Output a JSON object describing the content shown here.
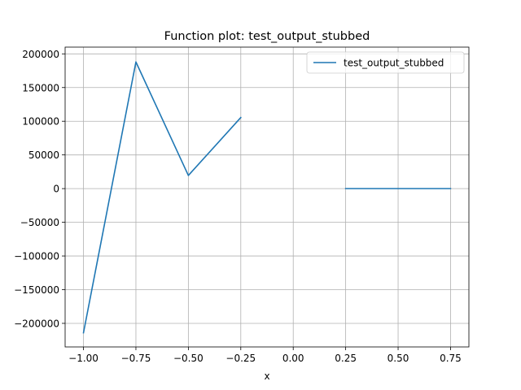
{
  "chart_data": {
    "type": "line",
    "title": "Function plot: test_output_stubbed",
    "xlabel": "x",
    "ylabel": "",
    "xlim": [
      -1.0875,
      0.8375
    ],
    "ylim": [
      -235000,
      210000
    ],
    "xticks": [
      -1.0,
      -0.75,
      -0.5,
      -0.25,
      0.0,
      0.25,
      0.5,
      0.75
    ],
    "xtick_labels": [
      "−1.00",
      "−0.75",
      "−0.50",
      "−0.25",
      "0.00",
      "0.25",
      "0.50",
      "0.75"
    ],
    "yticks": [
      -200000,
      -150000,
      -100000,
      -50000,
      0,
      50000,
      100000,
      150000,
      200000
    ],
    "ytick_labels": [
      "−200000",
      "−150000",
      "−100000",
      "−50000",
      "0",
      "50000",
      "100000",
      "150000",
      "200000"
    ],
    "grid": true,
    "legend_position": "upper right",
    "series": [
      {
        "name": "test_output_stubbed",
        "color": "#1f77b4",
        "segments": [
          {
            "x": [
              -1.0,
              -0.75,
              -0.5,
              -0.25
            ],
            "y": [
              -214000,
              188000,
              19500,
              105500
            ]
          },
          {
            "x": [
              0.25,
              0.5,
              0.75
            ],
            "y": [
              0,
              0,
              0
            ]
          }
        ]
      }
    ]
  }
}
